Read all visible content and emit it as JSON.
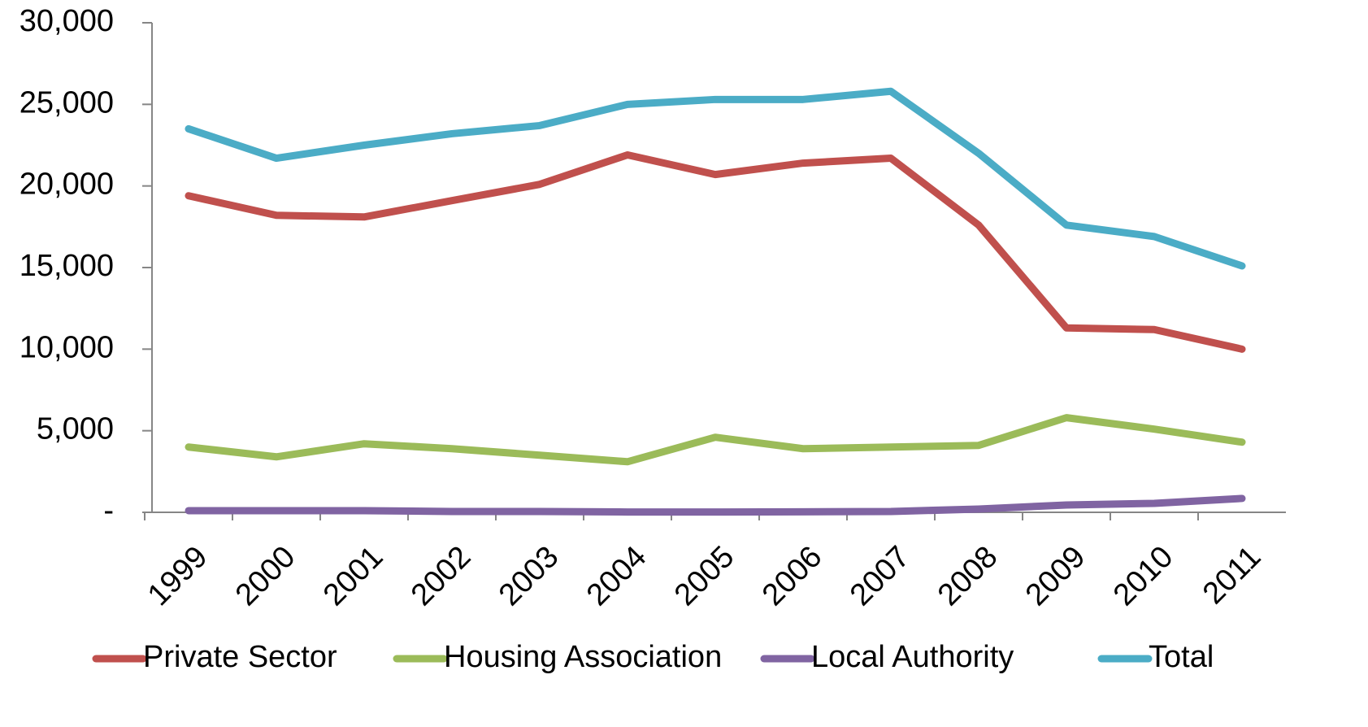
{
  "chart_data": {
    "type": "line",
    "categories": [
      "1999",
      "2000",
      "2001",
      "2002",
      "2003",
      "2004",
      "2005",
      "2006",
      "2007",
      "2008",
      "2009",
      "2010",
      "2011"
    ],
    "series": [
      {
        "name": "Private Sector",
        "color": "#c0504d",
        "values": [
          19400,
          18200,
          18100,
          19100,
          20100,
          21900,
          20700,
          21400,
          21700,
          17600,
          11300,
          11200,
          10000
        ]
      },
      {
        "name": "Housing Association",
        "color": "#9bbb59",
        "values": [
          4000,
          3400,
          4200,
          3900,
          3500,
          3100,
          4600,
          3900,
          4000,
          4100,
          5800,
          5100,
          4300
        ]
      },
      {
        "name": "Local Authority",
        "color": "#8064a2",
        "values": [
          100,
          100,
          100,
          50,
          50,
          20,
          20,
          30,
          50,
          200,
          450,
          550,
          850
        ]
      },
      {
        "name": "Total",
        "color": "#4bacc6",
        "values": [
          23500,
          21700,
          22500,
          23200,
          23700,
          25000,
          25300,
          25300,
          25800,
          22000,
          17600,
          16900,
          15100
        ]
      }
    ],
    "ylim": [
      0,
      30000
    ],
    "yticks": [
      {
        "value": 0,
        "label": "-"
      },
      {
        "value": 5000,
        "label": "5,000"
      },
      {
        "value": 10000,
        "label": "10,000"
      },
      {
        "value": 15000,
        "label": "15,000"
      },
      {
        "value": 20000,
        "label": "20,000"
      },
      {
        "value": 25000,
        "label": "25,000"
      },
      {
        "value": 30000,
        "label": "30,000"
      }
    ],
    "legend": "bottom"
  }
}
